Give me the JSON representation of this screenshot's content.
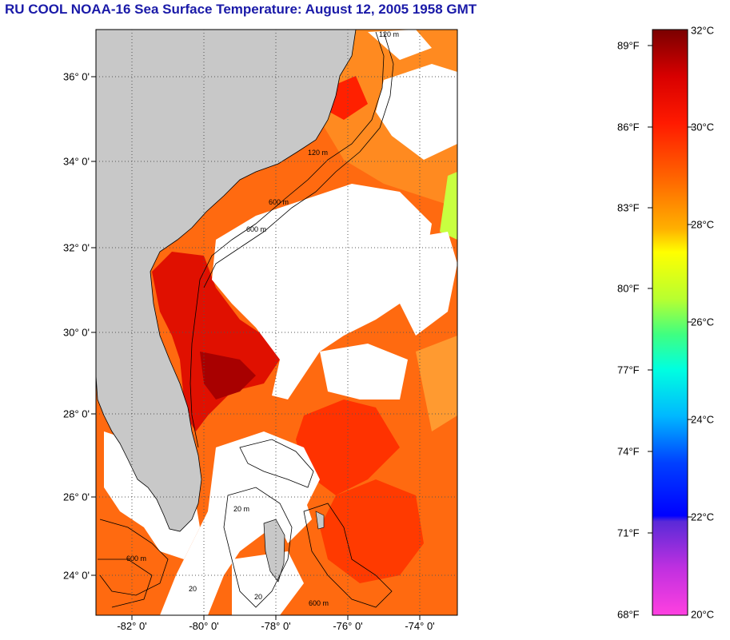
{
  "title": "RU COOL  NOAA-16  Sea Surface Temperature:  August 12, 2005 1958 GMT",
  "map": {
    "latitude_labels": [
      "36° 0'",
      "34° 0'",
      "32° 0'",
      "30° 0'",
      "28° 0'",
      "26° 0'",
      "24° 0'"
    ],
    "longitude_labels": [
      "-82° 0'",
      "-80° 0'",
      "-78° 0'",
      "-76° 0'",
      "-74° 0'"
    ],
    "contour_labels": [
      "120 m",
      "120 m",
      "600 m",
      "600 m",
      "20 m",
      "600 m",
      "600 m",
      "20",
      "20"
    ],
    "colors": {
      "land": "#c8c8c8",
      "cloud": "#ffffff",
      "warm_water": "#ff5a00",
      "hot_water": "#c80000"
    }
  },
  "colorbar": {
    "fahrenheit_labels": [
      "89°F",
      "86°F",
      "83°F",
      "80°F",
      "77°F",
      "74°F",
      "71°F",
      "68°F"
    ],
    "celsius_labels": [
      "32°C",
      "30°C",
      "28°C",
      "26°C",
      "24°C",
      "22°C",
      "20°C"
    ],
    "min_c": 20,
    "max_c": 32
  }
}
